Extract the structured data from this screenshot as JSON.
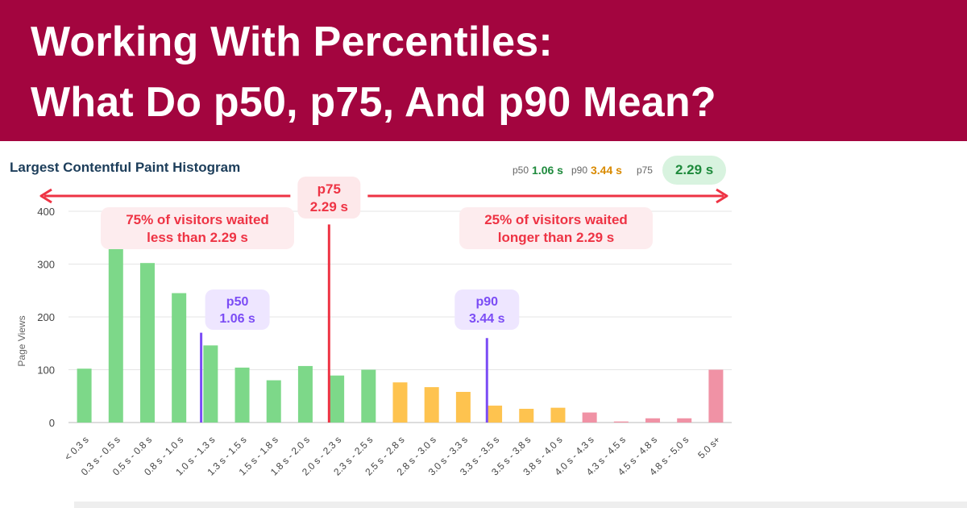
{
  "banner": {
    "line1": "Working With Percentiles:",
    "line2": "What Do p50, p75, And p90 Mean?"
  },
  "summary": {
    "p50_label": "p50",
    "p50_value": "1.06 s",
    "p90_label": "p90",
    "p90_value": "3.44 s",
    "p75_label": "p75",
    "p75_value": "2.29 s"
  },
  "colors": {
    "banner": "#a3053f",
    "good": "#7dd889",
    "needs_improvement": "#fec34f",
    "poor": "#f092a5",
    "p75": "#ee3344",
    "p50_p90": "#7b4cf5"
  },
  "chart_data": {
    "type": "bar",
    "title": "Largest Contentful Paint Histogram",
    "xlabel": "",
    "ylabel": "Page Views",
    "ylim": [
      0,
      400
    ],
    "yticks": [
      0,
      100,
      200,
      300,
      400
    ],
    "grid": true,
    "categories": [
      "< 0.3 s",
      "0.3 s - 0.5 s",
      "0.5 s - 0.8 s",
      "0.8 s - 1.0 s",
      "1.0 s - 1.3 s",
      "1.3 s - 1.5 s",
      "1.5 s - 1.8 s",
      "1.8 s - 2.0 s",
      "2.0 s - 2.3 s",
      "2.3 s - 2.5 s",
      "2.5 s - 2.8 s",
      "2.8 s - 3.0 s",
      "3.0 s - 3.3 s",
      "3.3 s - 3.5 s",
      "3.5 s - 3.8 s",
      "3.8 s - 4.0 s",
      "4.0 s - 4.3 s",
      "4.3 s - 4.5 s",
      "4.5 s - 4.8 s",
      "4.8 s - 5.0 s",
      "5.0 s+"
    ],
    "values": [
      102,
      348,
      302,
      245,
      146,
      104,
      80,
      107,
      89,
      100,
      76,
      67,
      58,
      32,
      26,
      28,
      19,
      2,
      8,
      8,
      100
    ],
    "bar_ratings": [
      "good",
      "good",
      "good",
      "good",
      "good",
      "good",
      "good",
      "good",
      "good",
      "good",
      "needs_improvement",
      "needs_improvement",
      "needs_improvement",
      "needs_improvement",
      "needs_improvement",
      "needs_improvement",
      "poor",
      "poor",
      "poor",
      "poor",
      "poor"
    ],
    "markers": [
      {
        "id": "p50",
        "label": "p50",
        "value_label": "1.06 s",
        "value": 1.06,
        "category_index": 3.7,
        "top": 170
      },
      {
        "id": "p75",
        "label": "p75",
        "value_label": "2.29 s",
        "value": 2.29,
        "category_index": 7.75,
        "top": 375
      },
      {
        "id": "p90",
        "label": "p90",
        "value_label": "3.44 s",
        "value": 3.44,
        "category_index": 12.75,
        "top": 160
      }
    ],
    "annotations": {
      "left": [
        "75% of visitors waited",
        "less than 2.29 s"
      ],
      "right": [
        "25% of visitors waited",
        "longer than 2.29 s"
      ]
    }
  }
}
